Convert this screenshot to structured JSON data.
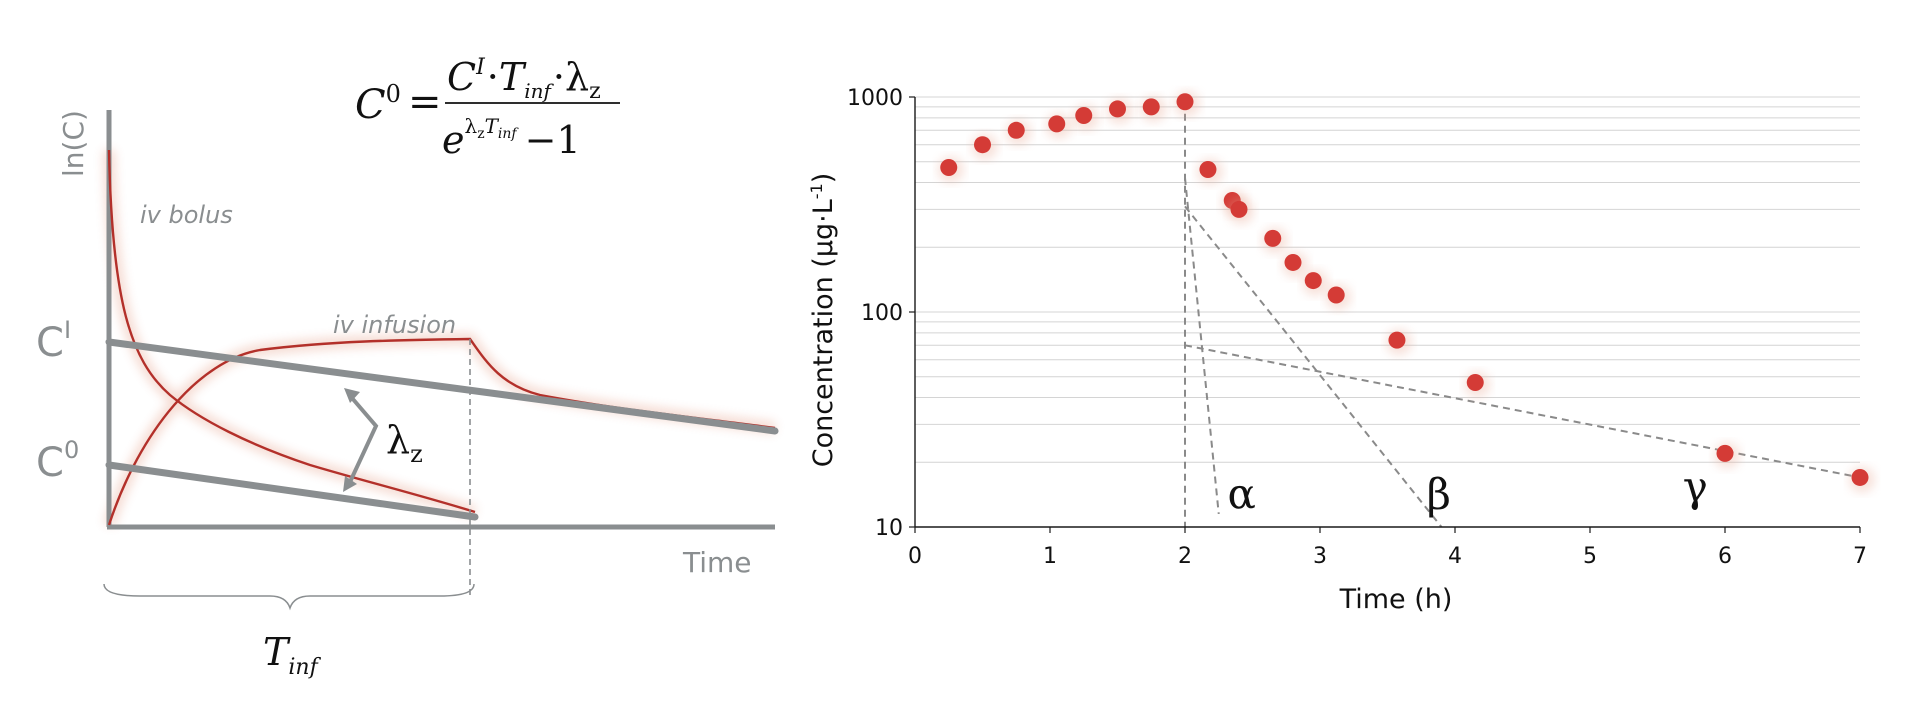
{
  "left_panel": {
    "y_axis_label": "ln(C)",
    "x_axis_label": "Time",
    "bolus_label": "iv bolus",
    "infusion_label": "iv infusion",
    "ci_label": {
      "base": "C",
      "sup": "I"
    },
    "c0_label": {
      "base": "C",
      "sup": "0"
    },
    "lambda_label": {
      "base": "λ",
      "sub": "z"
    },
    "tinf_label": {
      "base": "T",
      "sub": "inf"
    },
    "formula": {
      "lhs_base": "C",
      "lhs_sup": "0",
      "equals": "=",
      "numerator": {
        "c": "C",
        "c_sup": "I",
        "dot1": "·",
        "t": "T",
        "t_sub": "inf",
        "dot2": "·",
        "lambda": "λ",
        "lambda_sub": "z"
      },
      "denominator": {
        "e": "e",
        "exp_lambda": "λ",
        "exp_lambda_sub": "z",
        "exp_t": "T",
        "exp_t_sub": "inf",
        "minus_one": "−1"
      }
    },
    "colors": {
      "axis": "#8a8e90",
      "curve": "#b3302a"
    }
  },
  "chart_data": {
    "type": "scatter",
    "xlabel": "Time (h)",
    "ylabel": {
      "text": "Concentration (μg·L",
      "sup": "-1",
      "close": ")"
    },
    "x_ticks": [
      "0",
      "1",
      "2",
      "3",
      "4",
      "5",
      "6",
      "7"
    ],
    "y_ticks": [
      "10",
      "100",
      "1000"
    ],
    "xlim": [
      0,
      7
    ],
    "ylim": [
      10,
      1000
    ],
    "y_scale": "log",
    "grid": "horizontal",
    "marker_color": "#d43b36",
    "line_color": "#8a8a8a",
    "series": [
      {
        "x": [
          0.25,
          0.5,
          0.75,
          1.05,
          1.25,
          1.5,
          1.75,
          2.0,
          2.17,
          2.35,
          2.4,
          2.65,
          2.8,
          2.95,
          3.12,
          3.57,
          4.15,
          6.0,
          7.0
        ],
        "y": [
          470,
          600,
          700,
          750,
          820,
          880,
          900,
          950,
          460,
          330,
          300,
          220,
          170,
          140,
          120,
          74,
          47,
          22,
          17
        ]
      }
    ],
    "vertical_reference": {
      "x": 2,
      "from": 10,
      "to": 950
    },
    "phase_lines": [
      {
        "name": "α",
        "x": [
          2.0,
          2.25
        ],
        "y": [
          420,
          11.5
        ],
        "label_x": 2.42,
        "label_y": 12.2
      },
      {
        "name": "β",
        "x": [
          2.0,
          3.9
        ],
        "y": [
          310,
          10
        ],
        "label_x": 3.88,
        "label_y": 12.2
      },
      {
        "name": "γ",
        "x": [
          2.0,
          7.0
        ],
        "y": [
          70,
          17
        ],
        "label_x": 5.78,
        "label_y": 13.2
      }
    ]
  }
}
